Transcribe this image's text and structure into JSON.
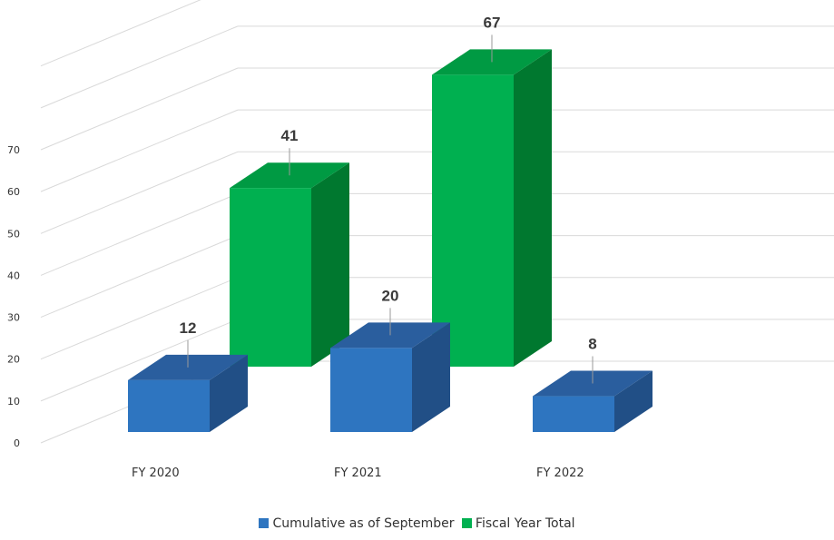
{
  "chart_data": {
    "type": "bar",
    "categories": [
      "FY 2020",
      "FY 2021",
      "FY 2022"
    ],
    "series": [
      {
        "name": "Cumulative as of September",
        "values": [
          12,
          20,
          8
        ]
      },
      {
        "name": "Fiscal Year Total",
        "values": [
          41,
          67,
          null
        ]
      }
    ],
    "y_ticks": [
      "0",
      "10",
      "20",
      "30",
      "40",
      "50",
      "60",
      "70"
    ],
    "ylim": [
      0,
      70
    ],
    "grid": true,
    "legend_position": "bottom",
    "colors": {
      "cumulative_front": "#2e75c0",
      "cumulative_side": "#214f86",
      "cumulative_top": "#2a5e9e",
      "total_front": "#00b050",
      "total_side": "#00782f",
      "total_top": "#009a43",
      "gridline": "#d9d9d9"
    }
  }
}
